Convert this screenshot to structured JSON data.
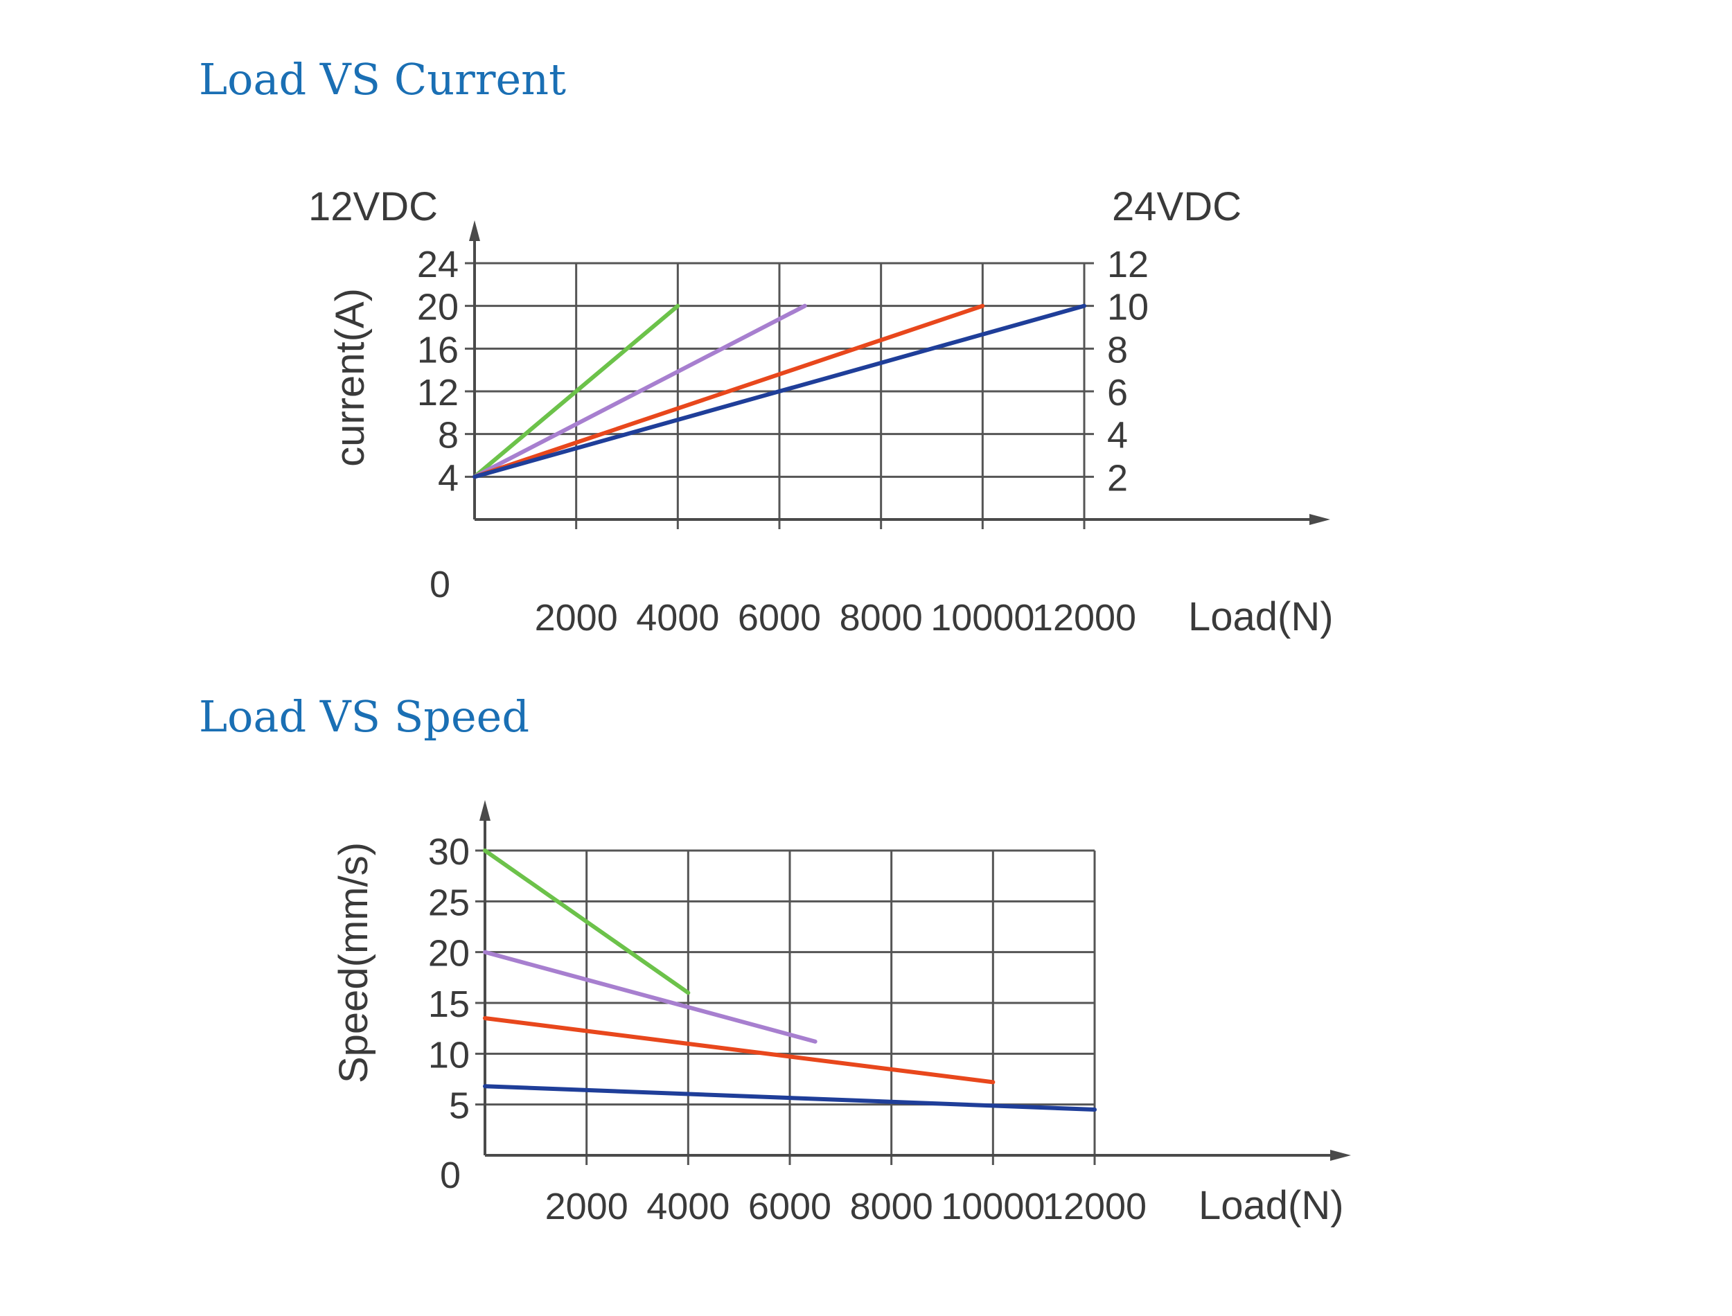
{
  "headings": {
    "current": "Load VS Current",
    "speed": "Load VS Speed"
  },
  "colors": {
    "heading": "#1a6fb4",
    "axis": "#4a4a4a",
    "grid": "#555555",
    "text": "#3a3a3a",
    "green": "#6cc24a",
    "purple": "#a77fcf",
    "red": "#e8471c",
    "blue": "#1f3e99"
  },
  "chart_data": [
    {
      "type": "line",
      "title": "Load VS Current",
      "xlabel": "Load(N)",
      "ylabel": "current(A)",
      "y_left_title": "12VDC",
      "y_right_title": "24VDC",
      "x_ticks": [
        "2000",
        "4000",
        "6000",
        "8000",
        "10000",
        "12000"
      ],
      "y_left_ticks": [
        "0",
        "4",
        "8",
        "12",
        "16",
        "20",
        "24"
      ],
      "y_right_ticks": [
        "2",
        "4",
        "6",
        "8",
        "10",
        "12"
      ],
      "xlim": [
        0,
        12000
      ],
      "ylim": [
        0,
        24
      ],
      "grid": true,
      "series": [
        {
          "color": "green",
          "points": [
            [
              0,
              4
            ],
            [
              4000,
              20
            ]
          ]
        },
        {
          "color": "purple",
          "points": [
            [
              0,
              4
            ],
            [
              6500,
              20
            ]
          ]
        },
        {
          "color": "red",
          "points": [
            [
              0,
              4
            ],
            [
              10000,
              20
            ]
          ]
        },
        {
          "color": "blue",
          "points": [
            [
              0,
              4
            ],
            [
              12000,
              20
            ]
          ]
        }
      ]
    },
    {
      "type": "line",
      "title": "Load VS Speed",
      "xlabel": "Load(N)",
      "ylabel": "Speed(mm/s)",
      "x_ticks": [
        "2000",
        "4000",
        "6000",
        "8000",
        "10000",
        "12000"
      ],
      "y_ticks": [
        "0",
        "5",
        "10",
        "15",
        "20",
        "25",
        "30"
      ],
      "xlim": [
        0,
        12000
      ],
      "ylim": [
        0,
        30
      ],
      "grid": true,
      "series": [
        {
          "color": "green",
          "points": [
            [
              0,
              30
            ],
            [
              4000,
              16
            ]
          ]
        },
        {
          "color": "purple",
          "points": [
            [
              0,
              20
            ],
            [
              6500,
              11.2
            ]
          ]
        },
        {
          "color": "red",
          "points": [
            [
              0,
              13.5
            ],
            [
              10000,
              7.2
            ]
          ]
        },
        {
          "color": "blue",
          "points": [
            [
              0,
              6.8
            ],
            [
              12000,
              4.5
            ]
          ]
        }
      ]
    }
  ]
}
